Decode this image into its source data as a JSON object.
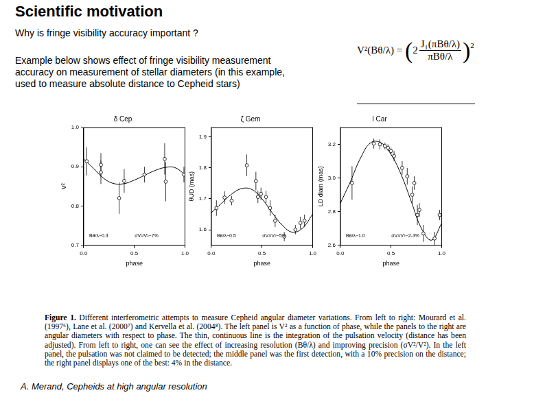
{
  "title": "Scientific motivation",
  "subtitle": "Why is fringe visibility accuracy important ?",
  "body": "Example below shows effect of fringe visibility measurement accuracy on measurement of stellar diameters (in this example, used to measure absolute distance to Cepheid stars)",
  "formula": {
    "lhs": "V²(Bθ/λ) =",
    "coefficient": "2",
    "numerator": "J₁(πBθ/λ)",
    "denominator": "πBθ/λ",
    "exponent": "2"
  },
  "caption": {
    "label": "Figure 1.",
    "text": "Different interferometric attempts to measure Cepheid angular diameter variations. From left to right: Mourard et al. (1997⁶), Lane et al. (2000⁷) and Kervella et al. (2004⁸). The left panel is V² as a function of phase, while the panels to the right are angular diameters with respect to phase. The thin, continuous line is the integration of the pulsation velocity (distance has been adjusted). From left to right, one can see the effect of increasing resolution (Bθ/λ) and improving precision (σV²/V²). In the left panel, the pulsation was not claimed to be detected; the middle panel was the first detection, with a 10% precision on the distance; the right panel displays one of the best: 4% in the distance."
  },
  "credit": "A. Merand, Cepheids at high angular resolution",
  "chart_data": [
    {
      "type": "scatter",
      "title": "δ Cep",
      "xlabel": "phase",
      "ylabel": "V²",
      "xlim": [
        0,
        1
      ],
      "xticks": [
        {
          "value": 0,
          "label": "0.0"
        },
        0.5,
        {
          "value": 1,
          "label": "1.0"
        }
      ],
      "ylim": [
        0.7,
        1
      ],
      "yticks": [
        0.7,
        0.8,
        0.9,
        {
          "value": 1,
          "label": "1.0"
        }
      ],
      "grid": false,
      "annotations": [
        "Bθ/λ~0.3",
        "σV²/V²~7%"
      ],
      "series": [
        {
          "type": "scatter",
          "marker": "circle",
          "color": "#000000",
          "x": [
            0.03,
            0.17,
            0.17,
            0.35,
            0.4,
            0.6,
            0.8,
            0.81,
            0.99
          ],
          "values": [
            0.914,
            0.905,
            0.886,
            0.82,
            0.864,
            0.88,
            0.92,
            0.862,
            0.88
          ],
          "errors": [
            0.036,
            0.03,
            0.03,
            0.04,
            0.03,
            0.02,
            0.04,
            0.05,
            0.02
          ]
        },
        {
          "type": "line",
          "line_style": "solid",
          "color": "#000000",
          "x": [
            0,
            0.1,
            0.2,
            0.3,
            0.4,
            0.5,
            0.6,
            0.7,
            0.8,
            0.9,
            1
          ],
          "values": [
            0.92,
            0.895,
            0.87,
            0.857,
            0.857,
            0.866,
            0.878,
            0.89,
            0.898,
            0.898,
            0.88
          ]
        }
      ]
    },
    {
      "type": "scatter",
      "title": "ζ Gem",
      "xlabel": "phase",
      "ylabel": "θUD (mas)",
      "xlim": [
        0,
        1
      ],
      "xticks": [
        {
          "value": 0,
          "label": "0.0"
        },
        0.5,
        {
          "value": 1,
          "label": "1.0"
        }
      ],
      "ylim": [
        1.55,
        1.93
      ],
      "yticks": [
        1.6,
        1.7,
        1.8,
        1.9
      ],
      "grid": false,
      "annotations": [
        "Bθ/λ~0.5",
        "σV²/V²~5%"
      ],
      "series": [
        {
          "type": "scatter",
          "marker": "circle",
          "color": "#000000",
          "x": [
            0.05,
            0.13,
            0.2,
            0.35,
            0.44,
            0.46,
            0.49,
            0.54,
            0.58,
            0.63,
            0.72,
            0.83,
            0.88,
            0.92
          ],
          "values": [
            1.67,
            1.704,
            1.694,
            1.808,
            1.757,
            1.706,
            1.716,
            1.706,
            1.67,
            1.629,
            1.578,
            1.6,
            1.622,
            1.629
          ],
          "errors": [
            0.025,
            0.02,
            0.015,
            0.035,
            0.03,
            0.02,
            0.02,
            0.02,
            0.025,
            0.02,
            0.015,
            0.015,
            0.02,
            0.02
          ]
        },
        {
          "type": "line",
          "line_style": "solid",
          "color": "#000000",
          "x": [
            0,
            0.1,
            0.2,
            0.3,
            0.4,
            0.5,
            0.6,
            0.7,
            0.8,
            0.9,
            1
          ],
          "values": [
            1.655,
            1.685,
            1.715,
            1.733,
            1.73,
            1.7,
            1.655,
            1.615,
            1.592,
            1.605,
            1.65
          ]
        }
      ]
    },
    {
      "type": "scatter",
      "title": "l Car",
      "xlabel": "phase",
      "ylabel": "LD diam (mas)",
      "xlim": [
        0,
        1
      ],
      "xticks": [
        {
          "value": 0,
          "label": "0.0"
        },
        0.5,
        {
          "value": 1,
          "label": "1.0"
        }
      ],
      "ylim": [
        2.6,
        3.3
      ],
      "yticks": [
        2.6,
        2.8,
        {
          "value": 3,
          "label": "3.0"
        },
        3.2
      ],
      "grid": false,
      "annotations": [
        "Bθ/λ~1.0",
        "σV²/V²~2-3%"
      ],
      "series": [
        {
          "type": "scatter",
          "marker": "circle",
          "color": "#000000",
          "x": [
            0.115,
            0.33,
            0.39,
            0.44,
            0.47,
            0.5,
            0.53,
            0.61,
            0.66,
            0.71,
            0.73,
            0.76,
            0.78,
            0.82,
            0.93,
            0.98
          ],
          "values": [
            2.97,
            3.205,
            3.2,
            3.19,
            3.18,
            3.16,
            3.13,
            3.06,
            3.01,
            2.9,
            2.97,
            2.78,
            2.81,
            2.67,
            2.64,
            2.78
          ],
          "errors": [
            0.1,
            0.03,
            0.03,
            0.02,
            0.02,
            0.02,
            0.03,
            0.04,
            0.05,
            0.05,
            0.04,
            0.06,
            0.04,
            0.05,
            0.04,
            0.03
          ]
        },
        {
          "type": "line",
          "line_style": "solid",
          "color": "#000000",
          "x": [
            0,
            0.1,
            0.2,
            0.3,
            0.4,
            0.5,
            0.6,
            0.7,
            0.8,
            0.9,
            1
          ],
          "values": [
            2.85,
            2.98,
            3.12,
            3.21,
            3.21,
            3.14,
            3.02,
            2.86,
            2.7,
            2.63,
            2.73
          ]
        }
      ]
    }
  ]
}
